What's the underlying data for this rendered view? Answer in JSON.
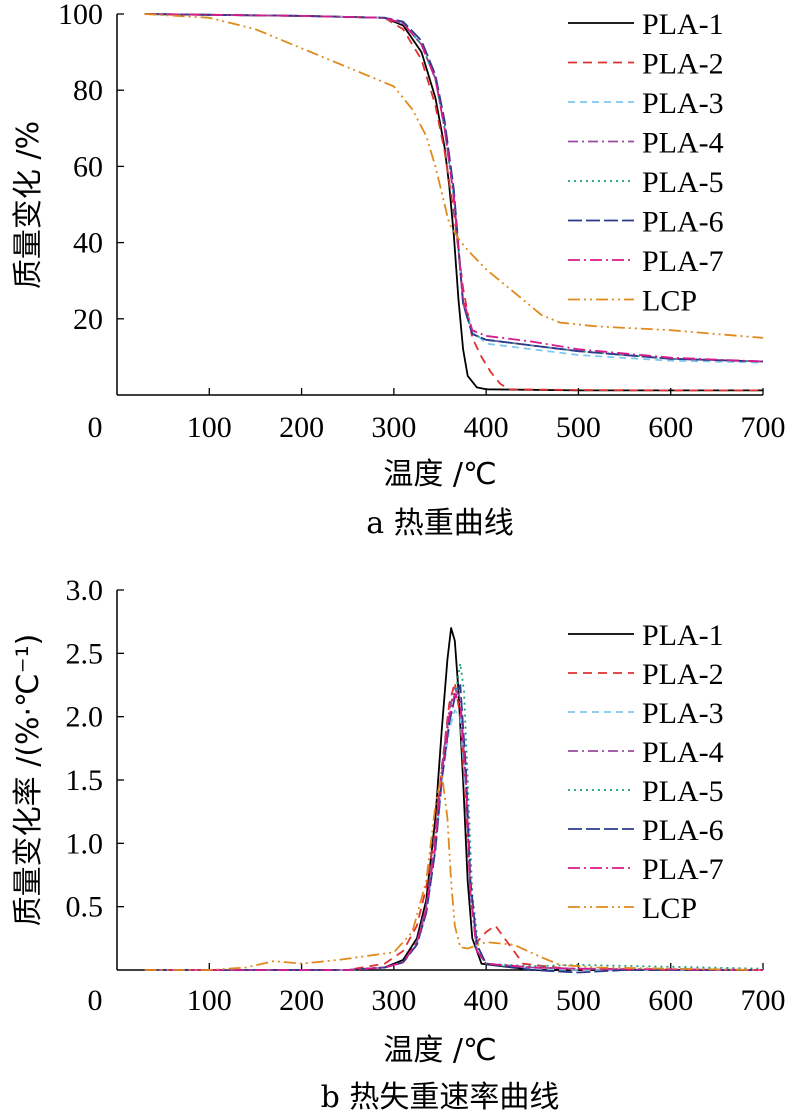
{
  "chart_data": [
    {
      "type": "line",
      "caption": "a  热重曲线",
      "xlabel": "温度 /℃",
      "ylabel": "质量变化 /%",
      "xlim": [
        0,
        700
      ],
      "ylim": [
        0,
        100
      ],
      "xticks": [
        "0",
        "100",
        "200",
        "300",
        "400",
        "500",
        "600",
        "700"
      ],
      "yticks": [
        "20",
        "40",
        "60",
        "80",
        "100"
      ],
      "legend_position": "top-right",
      "series": [
        {
          "name": "PLA-1",
          "color": "#000000",
          "dash": "",
          "x": [
            30,
            100,
            200,
            290,
            310,
            330,
            345,
            355,
            360,
            365,
            370,
            375,
            380,
            390,
            400,
            500,
            600,
            700
          ],
          "y": [
            100,
            99.8,
            99.5,
            99,
            97,
            90,
            78,
            65,
            55,
            42,
            25,
            12,
            5,
            2,
            1.5,
            1.2,
            1.2,
            1.2
          ]
        },
        {
          "name": "PLA-2",
          "color": "#e03030",
          "dash": "9,6",
          "x": [
            30,
            100,
            200,
            290,
            310,
            330,
            345,
            355,
            365,
            375,
            385,
            395,
            405,
            415,
            425,
            500,
            600,
            700
          ],
          "y": [
            100,
            99.8,
            99.5,
            99,
            96,
            88,
            76,
            64,
            48,
            28,
            15,
            10,
            6,
            3,
            1.5,
            1.3,
            1.2,
            1.2
          ]
        },
        {
          "name": "PLA-3",
          "color": "#7ec8f0",
          "dash": "7,5",
          "x": [
            30,
            100,
            200,
            290,
            310,
            330,
            345,
            355,
            365,
            370,
            375,
            385,
            400,
            450,
            500,
            600,
            700
          ],
          "y": [
            100,
            99.8,
            99.5,
            99,
            97.5,
            92,
            83,
            70,
            52,
            38,
            25,
            17,
            13.5,
            12,
            10.5,
            9,
            8.5
          ]
        },
        {
          "name": "PLA-4",
          "color": "#9a4aa0",
          "dash": "10,4,2,4",
          "x": [
            30,
            100,
            200,
            290,
            310,
            330,
            345,
            355,
            365,
            370,
            375,
            385,
            400,
            450,
            500,
            600,
            700
          ],
          "y": [
            100,
            99.8,
            99.5,
            99,
            97.5,
            92,
            83,
            70,
            52,
            38,
            24,
            16,
            14.5,
            13,
            11.5,
            9.5,
            8.8
          ]
        },
        {
          "name": "PLA-5",
          "color": "#1aa07a",
          "dash": "2,4",
          "x": [
            30,
            100,
            200,
            290,
            310,
            330,
            345,
            355,
            365,
            370,
            375,
            385,
            400,
            450,
            500,
            600,
            700
          ],
          "y": [
            100,
            99.8,
            99.5,
            99,
            97.5,
            92,
            83,
            70,
            52,
            38,
            24,
            16,
            14.5,
            13,
            11.5,
            9.5,
            8.8
          ]
        },
        {
          "name": "PLA-6",
          "color": "#2c3a8c",
          "dash": "14,4",
          "x": [
            30,
            100,
            200,
            290,
            310,
            330,
            345,
            355,
            365,
            370,
            375,
            385,
            400,
            450,
            500,
            600,
            700
          ],
          "y": [
            100,
            99.8,
            99.5,
            99,
            98,
            93,
            84,
            72,
            54,
            39,
            24,
            16,
            14.5,
            13,
            11.5,
            9.5,
            8.8
          ]
        },
        {
          "name": "PLA-7",
          "color": "#d81b8a",
          "dash": "12,4,2,4",
          "x": [
            30,
            100,
            200,
            290,
            310,
            330,
            345,
            355,
            365,
            370,
            375,
            385,
            400,
            450,
            500,
            600,
            700
          ],
          "y": [
            100,
            99.8,
            99.5,
            99,
            97.5,
            92,
            83,
            70,
            52,
            38,
            25,
            17,
            15.5,
            14,
            12,
            9.8,
            8.8
          ]
        },
        {
          "name": "LCP",
          "color": "#e08a1e",
          "dash": "12,4,2,4,2,4",
          "x": [
            30,
            100,
            150,
            200,
            250,
            300,
            320,
            335,
            345,
            355,
            360,
            370,
            380,
            400,
            430,
            460,
            480,
            520,
            600,
            700
          ],
          "y": [
            100,
            99,
            96,
            91,
            86,
            81,
            75,
            68,
            60,
            50,
            45,
            41,
            38,
            33,
            27,
            21,
            19,
            18,
            17,
            15
          ]
        }
      ]
    },
    {
      "type": "line",
      "caption": "b  热失重速率曲线",
      "xlabel": "温度 /℃",
      "ylabel": "质量变化率 /(%·℃⁻¹)",
      "xlim": [
        0,
        700
      ],
      "ylim": [
        0,
        3
      ],
      "xticks": [
        "0",
        "100",
        "200",
        "300",
        "400",
        "500",
        "600",
        "700"
      ],
      "yticks": [
        "0.5",
        "1.0",
        "1.5",
        "2.0",
        "2.5",
        "3.0"
      ],
      "legend_position": "top-right",
      "series": [
        {
          "name": "PLA-1",
          "color": "#000000",
          "dash": "",
          "x": [
            30,
            250,
            290,
            310,
            325,
            335,
            345,
            352,
            358,
            362,
            366,
            370,
            375,
            380,
            385,
            395,
            450,
            700
          ],
          "y": [
            0,
            0,
            0.02,
            0.08,
            0.25,
            0.55,
            1.2,
            1.9,
            2.45,
            2.7,
            2.6,
            2.2,
            1.5,
            0.7,
            0.25,
            0.05,
            0,
            0
          ]
        },
        {
          "name": "PLA-2",
          "color": "#e03030",
          "dash": "9,6",
          "x": [
            30,
            250,
            290,
            310,
            325,
            335,
            345,
            352,
            360,
            366,
            372,
            378,
            383,
            390,
            400,
            410,
            420,
            440,
            500,
            700
          ],
          "y": [
            0,
            0,
            0.05,
            0.15,
            0.35,
            0.65,
            1.1,
            1.6,
            2.1,
            2.27,
            2.0,
            1.3,
            0.6,
            0.22,
            0.3,
            0.35,
            0.25,
            0.05,
            0,
            0
          ]
        },
        {
          "name": "PLA-3",
          "color": "#7ec8f0",
          "dash": "7,5",
          "x": [
            30,
            250,
            290,
            310,
            325,
            335,
            345,
            352,
            360,
            366,
            372,
            378,
            383,
            390,
            400,
            450,
            500,
            700
          ],
          "y": [
            0,
            0,
            0.02,
            0.06,
            0.2,
            0.45,
            0.95,
            1.5,
            1.9,
            2.05,
            2.0,
            1.4,
            0.6,
            0.15,
            0.05,
            0.01,
            0,
            0
          ]
        },
        {
          "name": "PLA-4",
          "color": "#9a4aa0",
          "dash": "10,4,2,4",
          "x": [
            30,
            250,
            290,
            310,
            325,
            335,
            345,
            352,
            360,
            366,
            372,
            378,
            383,
            390,
            400,
            450,
            500,
            700
          ],
          "y": [
            0,
            0,
            0.02,
            0.06,
            0.22,
            0.5,
            1.05,
            1.6,
            2.05,
            2.22,
            2.15,
            1.5,
            0.6,
            0.15,
            0.05,
            0.02,
            0.01,
            0
          ]
        },
        {
          "name": "PLA-5",
          "color": "#1aa07a",
          "dash": "2,4",
          "x": [
            30,
            250,
            290,
            310,
            325,
            335,
            345,
            352,
            360,
            366,
            372,
            376,
            380,
            385,
            392,
            400,
            450,
            500,
            700
          ],
          "y": [
            0,
            0,
            0.02,
            0.06,
            0.2,
            0.45,
            0.95,
            1.5,
            1.95,
            2.15,
            2.42,
            2.2,
            1.5,
            0.6,
            0.15,
            0.05,
            0.03,
            0.04,
            0.01
          ]
        },
        {
          "name": "PLA-6",
          "color": "#2c3a8c",
          "dash": "14,4",
          "x": [
            30,
            250,
            290,
            310,
            325,
            335,
            345,
            352,
            360,
            366,
            372,
            378,
            383,
            390,
            400,
            450,
            500,
            550,
            700
          ],
          "y": [
            0,
            0,
            0.02,
            0.06,
            0.2,
            0.45,
            0.95,
            1.5,
            1.95,
            2.15,
            2.25,
            1.6,
            0.7,
            0.2,
            0.05,
            0,
            -0.02,
            0,
            0
          ]
        },
        {
          "name": "PLA-7",
          "color": "#d81b8a",
          "dash": "12,4,2,4",
          "x": [
            30,
            250,
            290,
            310,
            325,
            335,
            345,
            352,
            360,
            366,
            372,
            378,
            383,
            390,
            400,
            450,
            500,
            700
          ],
          "y": [
            0,
            0,
            0.02,
            0.06,
            0.22,
            0.48,
            1.0,
            1.55,
            2.0,
            2.18,
            2.1,
            1.5,
            0.6,
            0.15,
            0.05,
            0.02,
            0.01,
            0
          ]
        },
        {
          "name": "LCP",
          "color": "#e08a1e",
          "dash": "12,4,2,4,2,4",
          "x": [
            30,
            100,
            140,
            170,
            200,
            240,
            280,
            300,
            320,
            335,
            345,
            352,
            358,
            362,
            366,
            372,
            380,
            400,
            430,
            460,
            480,
            520,
            600,
            700
          ],
          "y": [
            0,
            0,
            0.02,
            0.07,
            0.05,
            0.08,
            0.12,
            0.14,
            0.3,
            0.7,
            1.3,
            1.55,
            1.2,
            0.7,
            0.35,
            0.18,
            0.17,
            0.22,
            0.2,
            0.1,
            0.04,
            0.02,
            0.01,
            0
          ]
        }
      ]
    }
  ]
}
